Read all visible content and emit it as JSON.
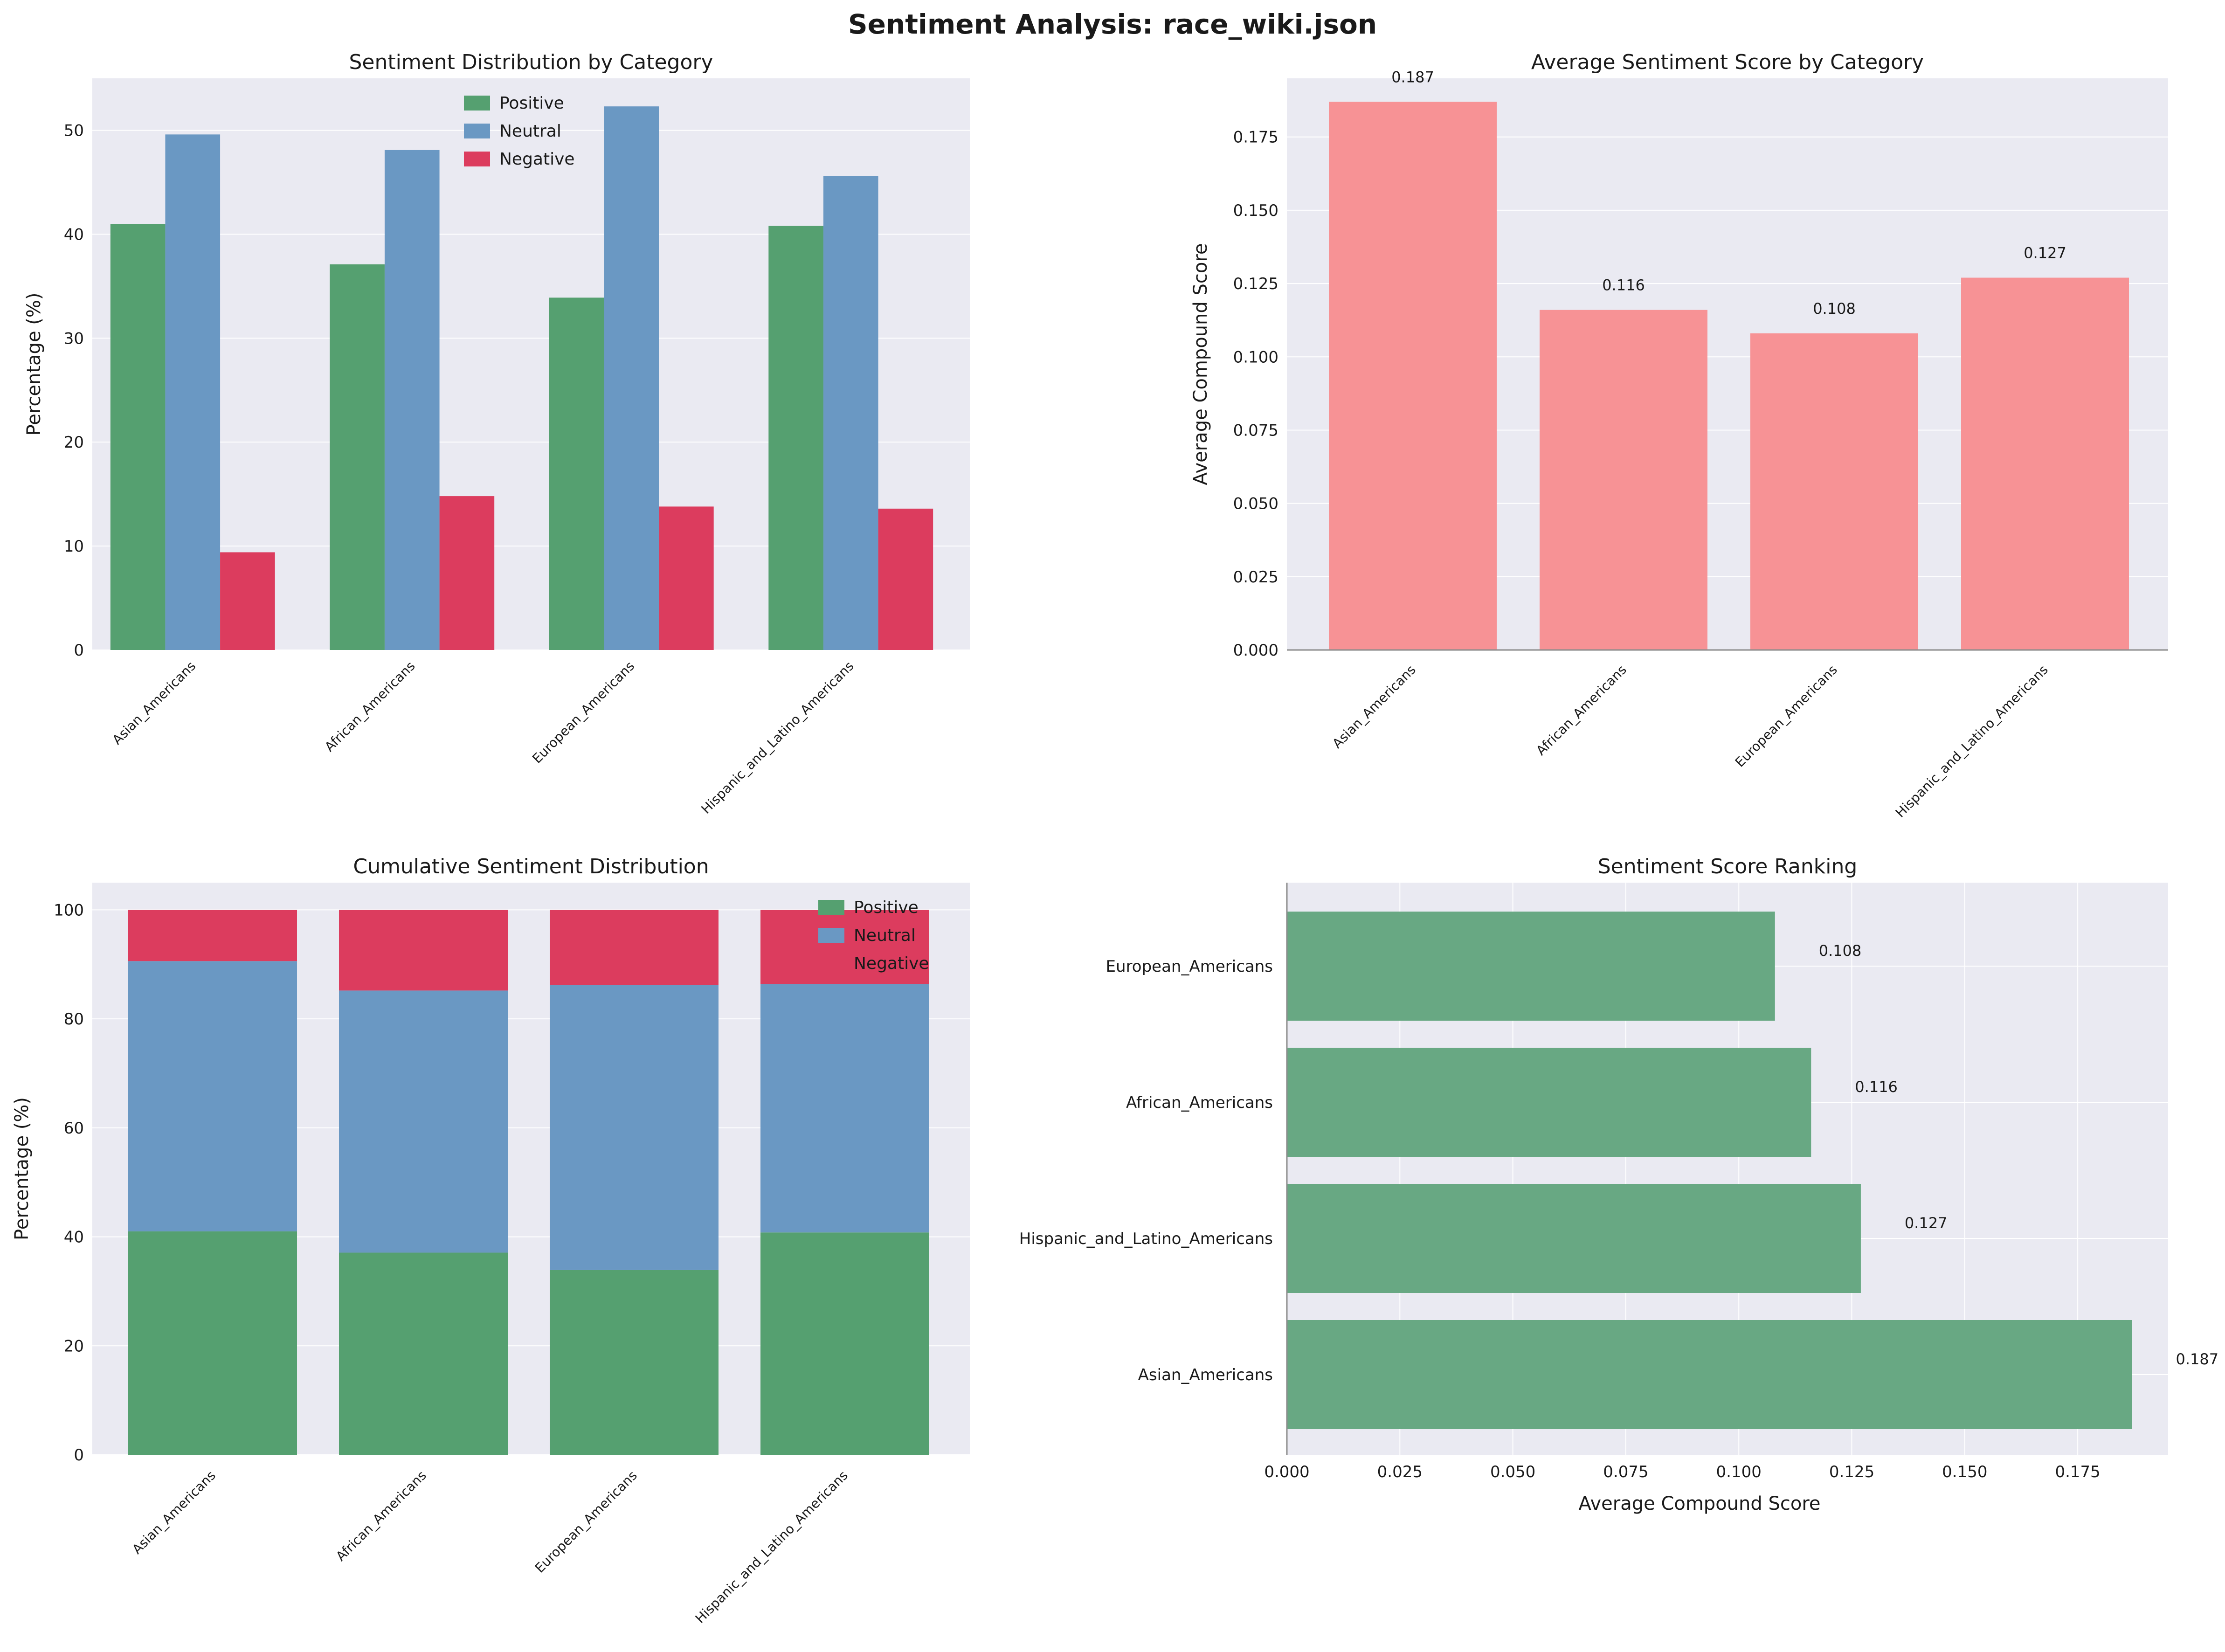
{
  "title": "Sentiment Analysis: race_wiki.json",
  "colors": {
    "positive": "#55a070",
    "neutral": "#6a98c3",
    "negative": "#dc3c5e",
    "avg_bar": "#f79295",
    "rank_bar": "#68a883",
    "plot_bg": "#eaeaf2",
    "grid": "#ffffff"
  },
  "chart_data": [
    {
      "id": "distribution",
      "type": "bar",
      "title": "Sentiment Distribution by Category",
      "xlabel": "",
      "ylabel": "Percentage (%)",
      "ylim": [
        0,
        55
      ],
      "yticks": [
        0,
        10,
        20,
        30,
        40,
        50
      ],
      "categories": [
        "Asian_Americans",
        "African_Americans",
        "European_Americans",
        "Hispanic_and_Latino_Americans"
      ],
      "series": [
        {
          "name": "Positive",
          "values": [
            41.0,
            37.1,
            33.9,
            40.8
          ]
        },
        {
          "name": "Neutral",
          "values": [
            49.6,
            48.1,
            52.3,
            45.6
          ]
        },
        {
          "name": "Negative",
          "values": [
            9.4,
            14.8,
            13.8,
            13.6
          ]
        }
      ],
      "legend": "top-center"
    },
    {
      "id": "average",
      "type": "bar",
      "title": "Average Sentiment Score by Category",
      "xlabel": "",
      "ylabel": "Average Compound Score",
      "ylim": [
        0,
        0.195
      ],
      "yticks": [
        "0.000",
        "0.025",
        "0.050",
        "0.075",
        "0.100",
        "0.125",
        "0.150",
        "0.175"
      ],
      "categories": [
        "Asian_Americans",
        "African_Americans",
        "European_Americans",
        "Hispanic_and_Latino_Americans"
      ],
      "values": [
        0.187,
        0.116,
        0.108,
        0.127
      ],
      "data_labels": [
        "0.187",
        "0.116",
        "0.108",
        "0.127"
      ]
    },
    {
      "id": "cumulative",
      "type": "bar",
      "stacked": true,
      "title": "Cumulative Sentiment Distribution",
      "xlabel": "",
      "ylabel": "Percentage (%)",
      "ylim": [
        0,
        105
      ],
      "yticks": [
        0,
        20,
        40,
        60,
        80,
        100
      ],
      "categories": [
        "Asian_Americans",
        "African_Americans",
        "European_Americans",
        "Hispanic_and_Latino_Americans"
      ],
      "series": [
        {
          "name": "Positive",
          "values": [
            41.0,
            37.1,
            33.9,
            40.8
          ]
        },
        {
          "name": "Neutral",
          "values": [
            49.6,
            48.1,
            52.3,
            45.6
          ]
        },
        {
          "name": "Negative",
          "values": [
            9.4,
            14.8,
            13.8,
            13.6
          ]
        }
      ],
      "legend": "top-right"
    },
    {
      "id": "ranking",
      "type": "bar",
      "orientation": "horizontal",
      "title": "Sentiment Score Ranking",
      "xlabel": "Average Compound Score",
      "ylabel": "",
      "xlim": [
        0,
        0.195
      ],
      "xticks": [
        "0.000",
        "0.025",
        "0.050",
        "0.075",
        "0.100",
        "0.125",
        "0.150",
        "0.175"
      ],
      "categories": [
        "Asian_Americans",
        "Hispanic_and_Latino_Americans",
        "African_Americans",
        "European_Americans"
      ],
      "values": [
        0.187,
        0.127,
        0.116,
        0.108
      ],
      "data_labels": [
        "0.187",
        "0.127",
        "0.116",
        "0.108"
      ]
    }
  ]
}
